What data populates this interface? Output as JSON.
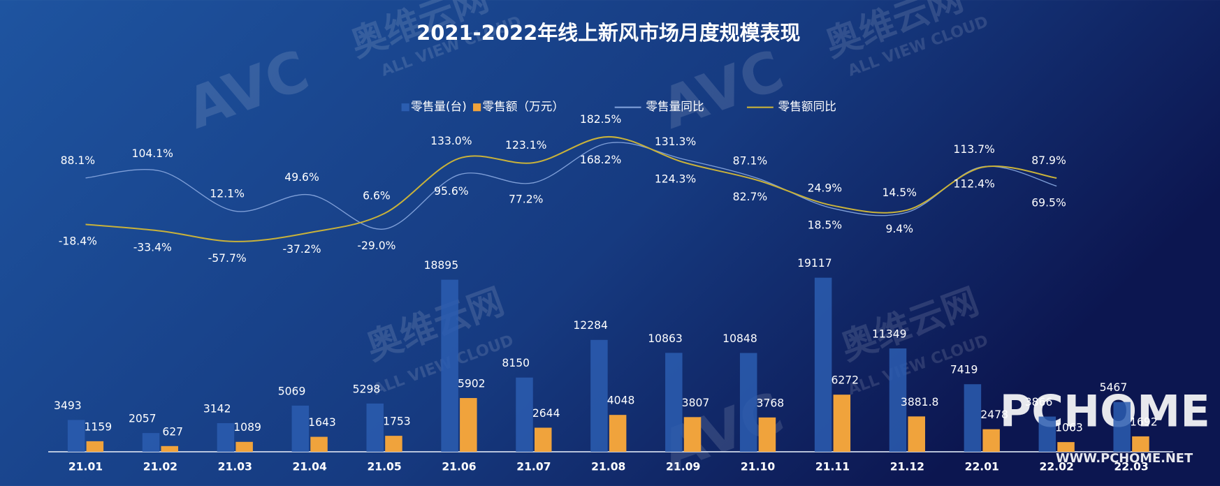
{
  "chart_data": {
    "type": "bar-line",
    "title": "2021-2022年线上新风市场月度规模表现",
    "categories": [
      "21.01",
      "21.02",
      "21.03",
      "21.04",
      "21.05",
      "21.06",
      "21.07",
      "21.08",
      "21.09",
      "21.10",
      "21.11",
      "21.12",
      "22.01",
      "22.02",
      "22.03"
    ],
    "ylim": [
      0,
      45000
    ],
    "y2lim": [
      -540,
      400
    ],
    "legend": "top",
    "series": [
      {
        "name": "零售量(台)",
        "type": "bar",
        "color": "#2b5db0",
        "values": [
          3493,
          2057,
          3142,
          5069,
          5298,
          18895,
          8150,
          12284,
          10863,
          10848,
          19117,
          11349,
          7419,
          3866,
          5467
        ]
      },
      {
        "name": "零售额（万元）",
        "type": "bar",
        "color": "#f0a33c",
        "values": [
          1159,
          627,
          1089,
          1643,
          1753,
          5902,
          2644,
          4048,
          3807,
          3768,
          6272,
          3881.8,
          2478,
          1063,
          1692
        ]
      },
      {
        "name": "零售量同比",
        "type": "line",
        "axis": "y2",
        "color": "#7f9fd8",
        "values": [
          88.1,
          104.1,
          12.1,
          49.6,
          -29.0,
          95.6,
          77.2,
          168.2,
          131.3,
          87.1,
          18.5,
          9.4,
          113.7,
          69.5,
          null
        ],
        "value_labels": [
          "88.1%",
          "104.1%",
          "12.1%",
          "49.6%",
          "-29.0%",
          "95.6%",
          "77.2%",
          "168.2%",
          "131.3%",
          "87.1%",
          "18.5%",
          "9.4%",
          "113.7%",
          "69.5%",
          null
        ]
      },
      {
        "name": "零售额同比",
        "type": "line",
        "axis": "y2",
        "color": "#c9b23a",
        "values": [
          -18.4,
          -33.4,
          -57.7,
          -37.2,
          6.6,
          133.0,
          123.1,
          182.5,
          124.3,
          82.7,
          24.9,
          14.5,
          112.4,
          87.9,
          null
        ],
        "value_labels": [
          "-18.4%",
          "-33.4%",
          "-57.7%",
          "-37.2%",
          "6.6%",
          "133.0%",
          "123.1%",
          "182.5%",
          "124.3%",
          "82.7%",
          "24.9%",
          "14.5%",
          "112.4%",
          "87.9%",
          null
        ]
      }
    ],
    "watermarks": [
      "AVC",
      "奥维云网",
      "ALL VIEW CLOUD",
      "PCHOME",
      "WWW.PCHOME.NET"
    ]
  }
}
